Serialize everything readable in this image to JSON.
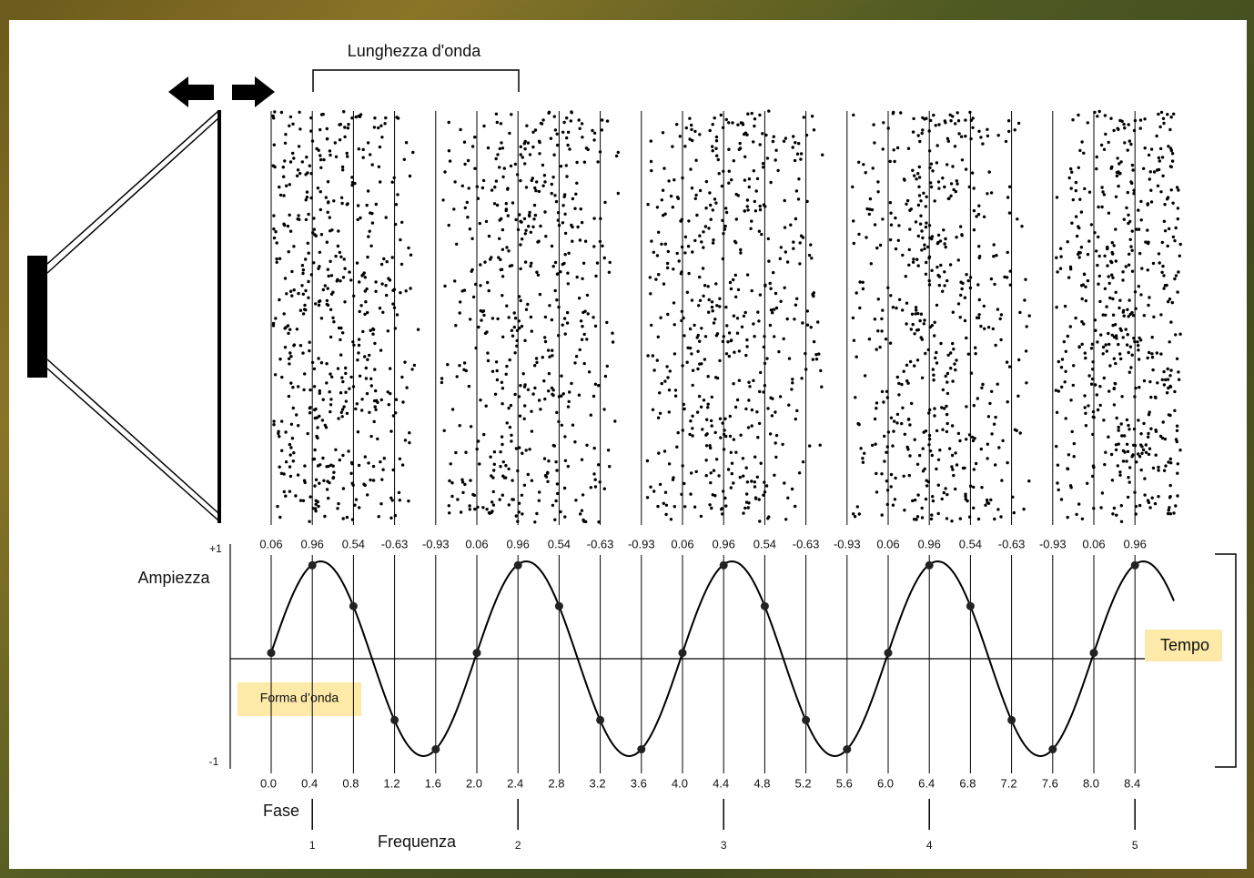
{
  "wavelength_label": "Lunghezza d'onda",
  "amplitude_label": "Ampiezza",
  "amplitude_max": "+1",
  "amplitude_min": "-1",
  "time_label": "Tempo",
  "waveform_label": "Forma d’onda",
  "phase_label": "Fase",
  "frequency_label": "Frequenza",
  "amplitudes": [
    0.06,
    0.96,
    0.54,
    -0.63,
    -0.93,
    0.06,
    0.96,
    0.54,
    -0.63,
    -0.93,
    0.06,
    0.96,
    0.54,
    -0.63,
    -0.93,
    0.06,
    0.96,
    0.54,
    -0.63,
    -0.93,
    0.06,
    0.96
  ],
  "phases": [
    "0.0",
    "0.4",
    "0.8",
    "1.2",
    "1.6",
    "2.0",
    "2.4",
    "2.8",
    "3.2",
    "3.6",
    "4.0",
    "4.4",
    "4.8",
    "5.2",
    "5.6",
    "6.0",
    "6.4",
    "6.8",
    "7.2",
    "7.6",
    "8.0",
    "8.4"
  ],
  "cycles": [
    1,
    2,
    3,
    4,
    5
  ]
}
